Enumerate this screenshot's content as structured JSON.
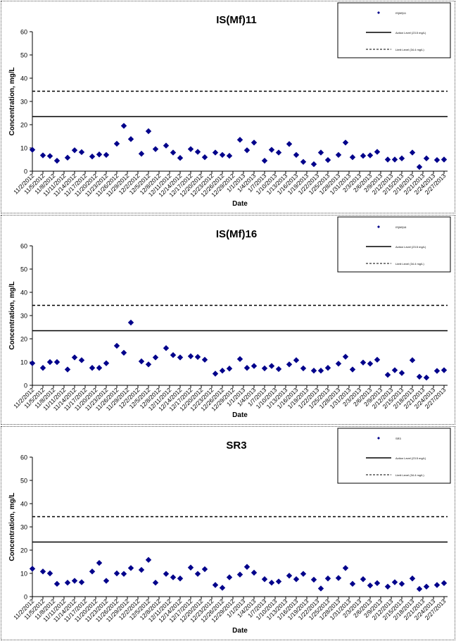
{
  "shared": {
    "xlabel": "Date",
    "ylabel": "Concentration, mg/L",
    "ylim": [
      0,
      60
    ],
    "yticks": [
      "0",
      "10",
      "20",
      "30",
      "40",
      "50",
      "60"
    ],
    "xtick_labels": [
      "11/2/2012",
      "11/5/2012",
      "11/8/2012",
      "11/11/2012",
      "11/14/2012",
      "11/17/2012",
      "11/20/2012",
      "11/23/2012",
      "11/26/2012",
      "11/29/2012",
      "12/2/2012",
      "12/5/2012",
      "12/8/2012",
      "12/11/2012",
      "12/14/2012",
      "12/17/2012",
      "12/20/2012",
      "12/23/2012",
      "12/26/2012",
      "12/29/2012",
      "1/1/2013",
      "1/4/2013",
      "1/7/2013",
      "1/10/2013",
      "1/13/2013",
      "1/16/2013",
      "1/19/2013",
      "1/22/2013",
      "1/25/2013",
      "1/28/2013",
      "1/31/2013",
      "2/3/2013",
      "2/6/2013",
      "2/9/2013",
      "2/12/2013",
      "2/15/2013",
      "2/18/2013",
      "2/21/2013",
      "2/24/2013",
      "2/27/2013"
    ],
    "x_start": "2012-11-02",
    "x_end": "2013-02-28",
    "marker_color": "#00008b",
    "line_color": "#000000"
  },
  "chart_data": [
    {
      "type": "scatter",
      "title": "IS(Mf)11",
      "legend": {
        "placement": "top-right",
        "entries": [
          "IS(Mf)11",
          "Action Level (23.5 mg/L)",
          "Limit Level (34.4 mg/L)"
        ]
      },
      "reference_lines": [
        {
          "value": 23.5,
          "style": "solid"
        },
        {
          "value": 34.4,
          "style": "dashed"
        }
      ],
      "x": [
        "2012-11-02",
        "2012-11-05",
        "2012-11-07",
        "2012-11-09",
        "2012-11-12",
        "2012-11-14",
        "2012-11-16",
        "2012-11-19",
        "2012-11-21",
        "2012-11-23",
        "2012-11-26",
        "2012-11-28",
        "2012-11-30",
        "2012-12-03",
        "2012-12-05",
        "2012-12-07",
        "2012-12-10",
        "2012-12-12",
        "2012-12-14",
        "2012-12-17",
        "2012-12-19",
        "2012-12-21",
        "2012-12-24",
        "2012-12-26",
        "2012-12-28",
        "2012-12-31",
        "2013-01-02",
        "2013-01-04",
        "2013-01-07",
        "2013-01-09",
        "2013-01-11",
        "2013-01-14",
        "2013-01-16",
        "2013-01-18",
        "2013-01-21",
        "2013-01-23",
        "2013-01-25",
        "2013-01-28",
        "2013-01-30",
        "2013-02-01",
        "2013-02-04",
        "2013-02-06",
        "2013-02-08",
        "2013-02-11",
        "2013-02-13",
        "2013-02-15",
        "2013-02-18",
        "2013-02-20",
        "2013-02-22",
        "2013-02-25",
        "2013-02-27"
      ],
      "y": [
        9.2,
        6.8,
        6.5,
        4.5,
        5.8,
        9.0,
        8.2,
        6.3,
        7.2,
        7.0,
        11.8,
        19.5,
        13.8,
        7.5,
        17.2,
        9.5,
        11.0,
        8.0,
        5.7,
        9.5,
        8.3,
        6.0,
        8.0,
        7.0,
        6.6,
        13.5,
        9.0,
        12.3,
        4.5,
        9.2,
        8.0,
        11.7,
        7.0,
        4.0,
        3.0,
        8.0,
        4.8,
        7.0,
        12.3,
        6.0,
        6.6,
        6.8,
        8.3,
        5.0,
        5.0,
        5.5,
        8.0,
        1.8,
        5.5,
        4.8,
        5.0
      ]
    },
    {
      "type": "scatter",
      "title": "IS(Mf)16",
      "legend": {
        "placement": "top-right",
        "entries": [
          "IS(Mf)16",
          "Action Level (23.5 mg/L)",
          "Limit Level (34.4 mg/L)"
        ]
      },
      "reference_lines": [
        {
          "value": 23.5,
          "style": "solid"
        },
        {
          "value": 34.4,
          "style": "dashed"
        }
      ],
      "x": [
        "2012-11-02",
        "2012-11-05",
        "2012-11-07",
        "2012-11-09",
        "2012-11-12",
        "2012-11-14",
        "2012-11-16",
        "2012-11-19",
        "2012-11-21",
        "2012-11-23",
        "2012-11-26",
        "2012-11-28",
        "2012-11-30",
        "2012-12-03",
        "2012-12-05",
        "2012-12-07",
        "2012-12-10",
        "2012-12-12",
        "2012-12-14",
        "2012-12-17",
        "2012-12-19",
        "2012-12-21",
        "2012-12-24",
        "2012-12-26",
        "2012-12-28",
        "2012-12-31",
        "2013-01-02",
        "2013-01-04",
        "2013-01-07",
        "2013-01-09",
        "2013-01-11",
        "2013-01-14",
        "2013-01-16",
        "2013-01-18",
        "2013-01-21",
        "2013-01-23",
        "2013-01-25",
        "2013-01-28",
        "2013-01-30",
        "2013-02-01",
        "2013-02-04",
        "2013-02-06",
        "2013-02-08",
        "2013-02-11",
        "2013-02-13",
        "2013-02-15",
        "2013-02-18",
        "2013-02-20",
        "2013-02-22",
        "2013-02-25",
        "2013-02-27"
      ],
      "y": [
        9.5,
        7.5,
        10.0,
        10.0,
        6.8,
        12.0,
        10.8,
        7.5,
        7.5,
        9.5,
        17.0,
        14.0,
        27.0,
        10.3,
        9.0,
        12.0,
        16.0,
        13.0,
        12.0,
        12.5,
        12.2,
        11.0,
        5.0,
        6.3,
        7.2,
        11.3,
        7.5,
        8.3,
        7.3,
        8.3,
        7.0,
        9.0,
        10.8,
        7.3,
        6.3,
        6.3,
        7.5,
        9.3,
        12.3,
        6.8,
        9.8,
        9.3,
        11.0,
        4.5,
        6.5,
        5.3,
        10.8,
        3.7,
        3.3,
        6.2,
        6.5
      ]
    },
    {
      "type": "scatter",
      "title": "SR3",
      "legend": {
        "placement": "top-right",
        "entries": [
          "SR3",
          "Action Level (23.5 mg/L)",
          "Limit Level (34.4 mg/L)"
        ]
      },
      "reference_lines": [
        {
          "value": 23.5,
          "style": "solid"
        },
        {
          "value": 34.4,
          "style": "dashed"
        }
      ],
      "x": [
        "2012-11-02",
        "2012-11-05",
        "2012-11-07",
        "2012-11-09",
        "2012-11-12",
        "2012-11-14",
        "2012-11-16",
        "2012-11-19",
        "2012-11-21",
        "2012-11-23",
        "2012-11-26",
        "2012-11-28",
        "2012-11-30",
        "2012-12-03",
        "2012-12-05",
        "2012-12-07",
        "2012-12-10",
        "2012-12-12",
        "2012-12-14",
        "2012-12-17",
        "2012-12-19",
        "2012-12-21",
        "2012-12-24",
        "2012-12-26",
        "2012-12-28",
        "2012-12-31",
        "2013-01-02",
        "2013-01-04",
        "2013-01-07",
        "2013-01-09",
        "2013-01-11",
        "2013-01-14",
        "2013-01-16",
        "2013-01-18",
        "2013-01-21",
        "2013-01-23",
        "2013-01-25",
        "2013-01-28",
        "2013-01-30",
        "2013-02-01",
        "2013-02-04",
        "2013-02-06",
        "2013-02-08",
        "2013-02-11",
        "2013-02-13",
        "2013-02-15",
        "2013-02-18",
        "2013-02-20",
        "2013-02-22",
        "2013-02-25",
        "2013-02-27"
      ],
      "y": [
        12.0,
        10.8,
        10.0,
        5.5,
        6.0,
        6.8,
        6.2,
        10.8,
        14.5,
        6.8,
        10.0,
        9.8,
        12.3,
        11.5,
        15.8,
        6.0,
        9.8,
        8.3,
        7.8,
        12.5,
        9.8,
        11.8,
        5.0,
        3.8,
        8.3,
        9.5,
        12.8,
        10.3,
        7.5,
        6.0,
        6.5,
        9.0,
        7.5,
        9.8,
        7.3,
        3.5,
        7.8,
        8.0,
        12.3,
        5.5,
        7.5,
        4.8,
        5.8,
        4.3,
        6.2,
        5.5,
        7.8,
        3.3,
        4.3,
        5.0,
        5.8
      ]
    }
  ]
}
